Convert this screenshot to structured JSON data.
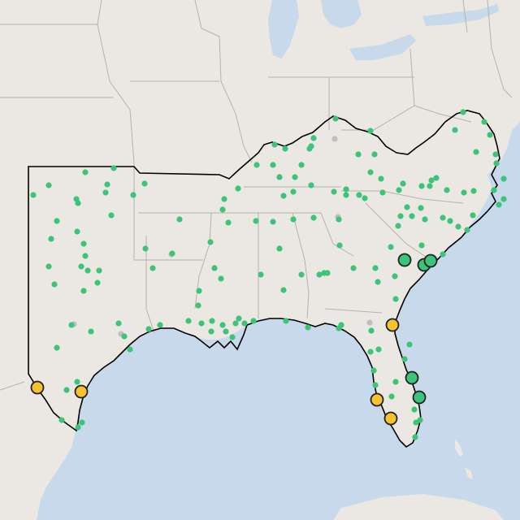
{
  "map": {
    "colors": {
      "land": "#ebe7e3",
      "water": "#c7d9ea",
      "state_border": "#b5b1ad",
      "region_outline": "#000000",
      "dot_green": "#3cc47a",
      "dot_gray": "#bfbfbf",
      "marker_green_fill": "#3cc47a",
      "marker_yellow_fill": "#f5c230",
      "marker_stroke": "#222222"
    },
    "legend": []
  }
}
